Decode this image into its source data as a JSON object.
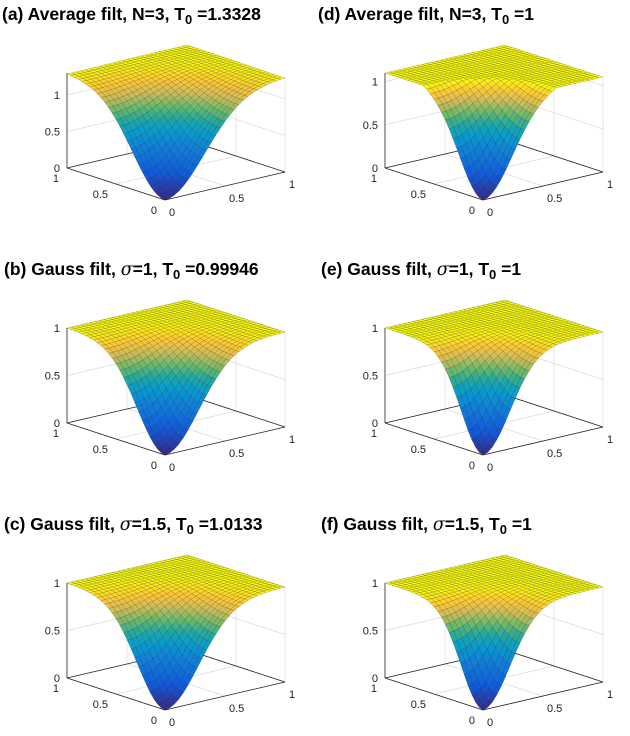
{
  "chart_data": [
    {
      "type": "surface",
      "title_prefix": "(a) Average filt, N=3, T",
      "title_sub": "0",
      "title_suffix": " =1.3328",
      "filter": "average",
      "N": 3,
      "T0": 1.3328,
      "x_ticks": [
        "0",
        "0.5",
        "1"
      ],
      "y_ticks": [
        "0",
        "0.5",
        "1"
      ],
      "z_ticks": [
        "0",
        "0.5",
        "1"
      ],
      "xlim": [
        0,
        1
      ],
      "ylim": [
        0,
        1
      ],
      "zlim": [
        0,
        1.3
      ],
      "surface": "bowl with minimum 0 at (0,0) rising to about 1.3 plateau at the far edges",
      "grid": true
    },
    {
      "type": "surface",
      "title_prefix": "(d) Average filt, N=3, T",
      "title_sub": "0",
      "title_suffix": " =1",
      "filter": "average",
      "N": 3,
      "T0": 1,
      "x_ticks": [
        "0",
        "0.5",
        "1"
      ],
      "y_ticks": [
        "0",
        "0.5",
        "1"
      ],
      "z_ticks": [
        "0",
        "0.5",
        "1"
      ],
      "xlim": [
        0,
        1
      ],
      "ylim": [
        0,
        1
      ],
      "zlim": [
        0,
        1.1
      ],
      "surface": "narrower bowl with minimum 0 at (0,0), slight overshoot above 1 near the middle of the far edges",
      "grid": true
    },
    {
      "type": "surface",
      "title_prefix": "(b) Gauss filt, ",
      "title_sigma": "σ",
      "title_mid": "=1, T",
      "title_sub": "0",
      "title_suffix": " =0.99946",
      "filter": "gauss",
      "sigma": 1,
      "T0": 0.99946,
      "x_ticks": [
        "0",
        "0.5",
        "1"
      ],
      "y_ticks": [
        "0",
        "0.5",
        "1"
      ],
      "z_ticks": [
        "0",
        "0.5",
        "1"
      ],
      "xlim": [
        0,
        1
      ],
      "ylim": [
        0,
        1
      ],
      "zlim": [
        0,
        1
      ],
      "surface": "bowl with minimum 0 at (0,0) rising smoothly to a plateau of 1",
      "grid": true
    },
    {
      "type": "surface",
      "title_prefix": "(e) Gauss filt, ",
      "title_sigma": "σ",
      "title_mid": "=1, T",
      "title_sub": "0",
      "title_suffix": " =1",
      "filter": "gauss",
      "sigma": 1,
      "T0": 1,
      "x_ticks": [
        "0",
        "0.5",
        "1"
      ],
      "y_ticks": [
        "0",
        "0.5",
        "1"
      ],
      "z_ticks": [
        "0",
        "0.5",
        "1"
      ],
      "xlim": [
        0,
        1
      ],
      "ylim": [
        0,
        1
      ],
      "zlim": [
        0,
        1
      ],
      "surface": "narrower bowl with minimum 0 at (0,0) rising to a plateau of 1",
      "grid": true
    },
    {
      "type": "surface",
      "title_prefix": "(c) Gauss filt, ",
      "title_sigma": "σ",
      "title_mid": "=1.5, T",
      "title_sub": "0",
      "title_suffix": " =1.0133",
      "filter": "gauss",
      "sigma": 1.5,
      "T0": 1.0133,
      "x_ticks": [
        "0",
        "0.5",
        "1"
      ],
      "y_ticks": [
        "0",
        "0.5",
        "1"
      ],
      "z_ticks": [
        "0",
        "0.5",
        "1"
      ],
      "xlim": [
        0,
        1
      ],
      "ylim": [
        0,
        1
      ],
      "zlim": [
        0,
        1
      ],
      "surface": "bowl with minimum 0 at (0,0) rising to a plateau of 1",
      "grid": true
    },
    {
      "type": "surface",
      "title_prefix": "(f) Gauss filt, ",
      "title_sigma": "σ",
      "title_mid": "=1.5, T",
      "title_sub": "0",
      "title_suffix": " =1",
      "filter": "gauss",
      "sigma": 1.5,
      "T0": 1,
      "x_ticks": [
        "0",
        "0.5",
        "1"
      ],
      "y_ticks": [
        "0",
        "0.5",
        "1"
      ],
      "z_ticks": [
        "0",
        "0.5",
        "1"
      ],
      "xlim": [
        0,
        1
      ],
      "ylim": [
        0,
        1
      ],
      "zlim": [
        0,
        1
      ],
      "surface": "narrower bowl with minimum 0 at (0,0) rising to a plateau of 1",
      "grid": true
    }
  ],
  "colors": {
    "colormap": "parula",
    "low": "#352a87",
    "mid": "#21a8a0",
    "high": "#f9fb0e",
    "edge": "#000000"
  }
}
